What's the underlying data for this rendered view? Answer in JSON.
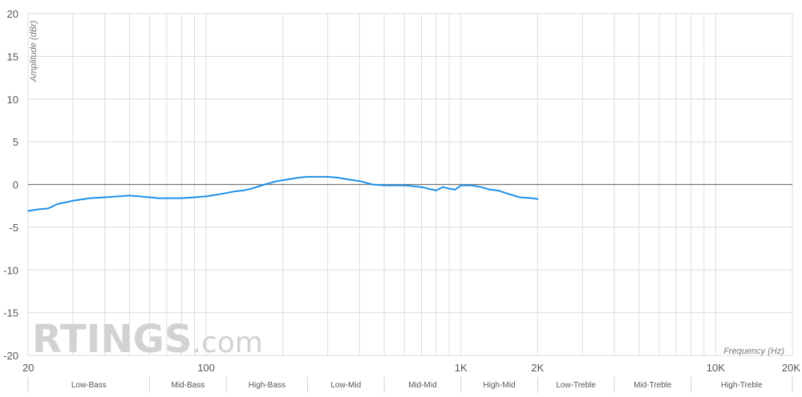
{
  "chart_data": {
    "type": "line",
    "title": "",
    "xlabel": "Frequency (Hz)",
    "ylabel": "Amplitude (dBr)",
    "x_scale": "log",
    "xlim": [
      20,
      20000
    ],
    "ylim": [
      -20,
      20
    ],
    "grid": true,
    "y_ticks": [
      20,
      15,
      10,
      5,
      0,
      -5,
      -10,
      -15,
      -20
    ],
    "x_ticks": [
      {
        "value": 20,
        "label": "20"
      },
      {
        "value": 100,
        "label": "100"
      },
      {
        "value": 1000,
        "label": "1K"
      },
      {
        "value": 2000,
        "label": "2K"
      },
      {
        "value": 10000,
        "label": "10K"
      },
      {
        "value": 20000,
        "label": "20K"
      }
    ],
    "frequency_bands": [
      {
        "label": "Low-Bass",
        "from": 20,
        "to": 60
      },
      {
        "label": "Mid-Bass",
        "from": 60,
        "to": 120
      },
      {
        "label": "High-Bass",
        "from": 120,
        "to": 250
      },
      {
        "label": "Low-Mid",
        "from": 250,
        "to": 500
      },
      {
        "label": "Mid-Mid",
        "from": 500,
        "to": 1000
      },
      {
        "label": "High-Mid",
        "from": 1000,
        "to": 2000
      },
      {
        "label": "Low-Treble",
        "from": 2000,
        "to": 4000
      },
      {
        "label": "Mid-Treble",
        "from": 4000,
        "to": 8000
      },
      {
        "label": "High-Treble",
        "from": 8000,
        "to": 20000
      }
    ],
    "series": [
      {
        "color": "#1e90e8",
        "x": [
          20,
          22,
          24,
          26,
          28,
          30,
          35,
          40,
          45,
          50,
          55,
          60,
          65,
          70,
          80,
          90,
          100,
          110,
          120,
          130,
          140,
          150,
          170,
          190,
          210,
          230,
          250,
          270,
          300,
          330,
          360,
          400,
          450,
          500,
          550,
          600,
          650,
          700,
          800,
          850,
          900,
          950,
          1000,
          1100,
          1200,
          1300,
          1400,
          1500,
          1700,
          1900,
          2000
        ],
        "y": [
          -3.1,
          -2.9,
          -2.8,
          -2.3,
          -2.1,
          -1.9,
          -1.6,
          -1.5,
          -1.4,
          -1.3,
          -1.4,
          -1.5,
          -1.6,
          -1.6,
          -1.6,
          -1.5,
          -1.4,
          -1.2,
          -1.0,
          -0.8,
          -0.7,
          -0.5,
          0.0,
          0.4,
          0.6,
          0.8,
          0.9,
          0.9,
          0.9,
          0.8,
          0.6,
          0.4,
          0.0,
          -0.1,
          -0.1,
          -0.1,
          -0.2,
          -0.3,
          -0.7,
          -0.3,
          -0.5,
          -0.6,
          -0.1,
          -0.1,
          -0.3,
          -0.6,
          -0.7,
          -1.0,
          -1.5,
          -1.6,
          -1.7
        ]
      }
    ],
    "watermark": "RTINGS.com"
  },
  "colors": {
    "grid": "#dcdcdc",
    "zero_line": "#777777",
    "line": "#1e90e8"
  }
}
